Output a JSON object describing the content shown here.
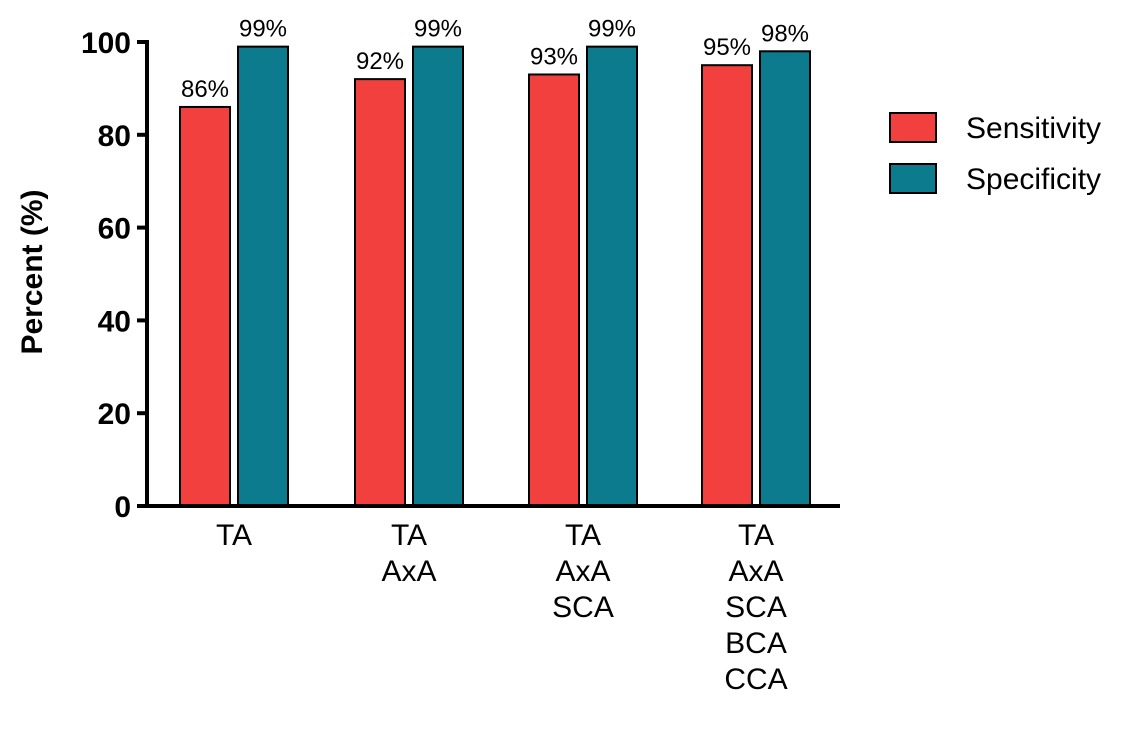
{
  "chart_data": {
    "type": "bar",
    "title": "",
    "xlabel": "",
    "ylabel": "Percent (%)",
    "ylim": [
      0,
      100
    ],
    "yticks": [
      0,
      20,
      40,
      60,
      80,
      100
    ],
    "grid": false,
    "legend_position": "top-right",
    "categories": [
      [
        "TA"
      ],
      [
        "TA",
        "AxA"
      ],
      [
        "TA",
        "AxA",
        "SCA"
      ],
      [
        "TA",
        "AxA",
        "SCA",
        "BCA",
        "CCA"
      ]
    ],
    "series": [
      {
        "name": "Sensitivity",
        "color": "#f2403f",
        "values": [
          86,
          92,
          93,
          95
        ],
        "labels": [
          "86%",
          "92%",
          "93%",
          "95%"
        ]
      },
      {
        "name": "Specificity",
        "color": "#0d7b8e",
        "values": [
          99,
          99,
          99,
          98
        ],
        "labels": [
          "99%",
          "99%",
          "99%",
          "98%"
        ]
      }
    ]
  }
}
